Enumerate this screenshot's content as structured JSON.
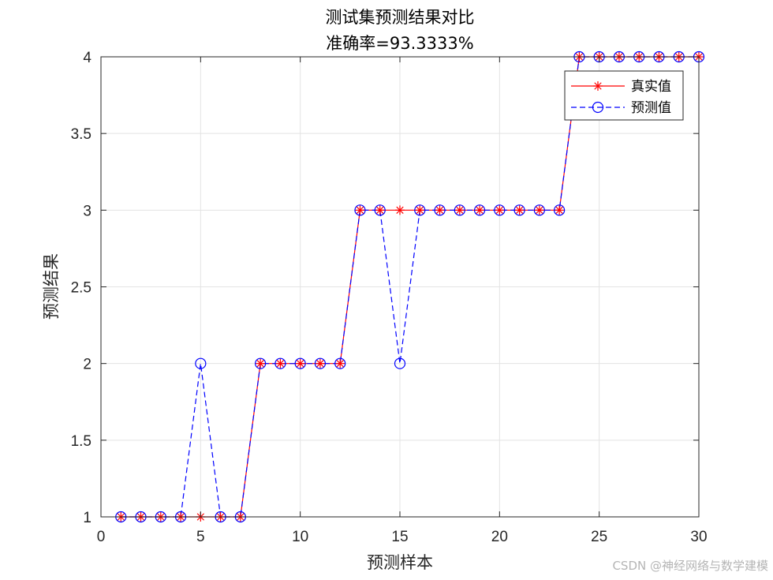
{
  "chart_data": {
    "type": "line",
    "title": "测试集预测结果对比",
    "subtitle": "准确率=93.3333%",
    "xlabel": "预测样本",
    "ylabel": "预测结果",
    "xlim": [
      0,
      30
    ],
    "ylim": [
      1,
      4
    ],
    "xticks": [
      "0",
      "5",
      "10",
      "15",
      "20",
      "25",
      "30"
    ],
    "yticks": [
      "1",
      "1.5",
      "2",
      "2.5",
      "3",
      "3.5",
      "4"
    ],
    "grid": true,
    "legend_position": "top-right",
    "x": [
      1,
      2,
      3,
      4,
      5,
      6,
      7,
      8,
      9,
      10,
      11,
      12,
      13,
      14,
      15,
      16,
      17,
      18,
      19,
      20,
      21,
      22,
      23,
      24,
      25,
      26,
      27,
      28,
      29,
      30
    ],
    "series": [
      {
        "name": "真实值",
        "color": "#ff0000",
        "line_style": "solid",
        "marker": "asterisk",
        "values": [
          1,
          1,
          1,
          1,
          1,
          1,
          1,
          2,
          2,
          2,
          2,
          2,
          3,
          3,
          3,
          3,
          3,
          3,
          3,
          3,
          3,
          3,
          3,
          4,
          4,
          4,
          4,
          4,
          4,
          4
        ]
      },
      {
        "name": "预测值",
        "color": "#0000ff",
        "line_style": "dashed",
        "marker": "circle",
        "values": [
          1,
          1,
          1,
          1,
          2,
          1,
          1,
          2,
          2,
          2,
          2,
          2,
          3,
          3,
          2,
          3,
          3,
          3,
          3,
          3,
          3,
          3,
          3,
          4,
          4,
          4,
          4,
          4,
          4,
          4
        ]
      }
    ]
  },
  "watermark": "CSDN @神经网络与数学建模"
}
